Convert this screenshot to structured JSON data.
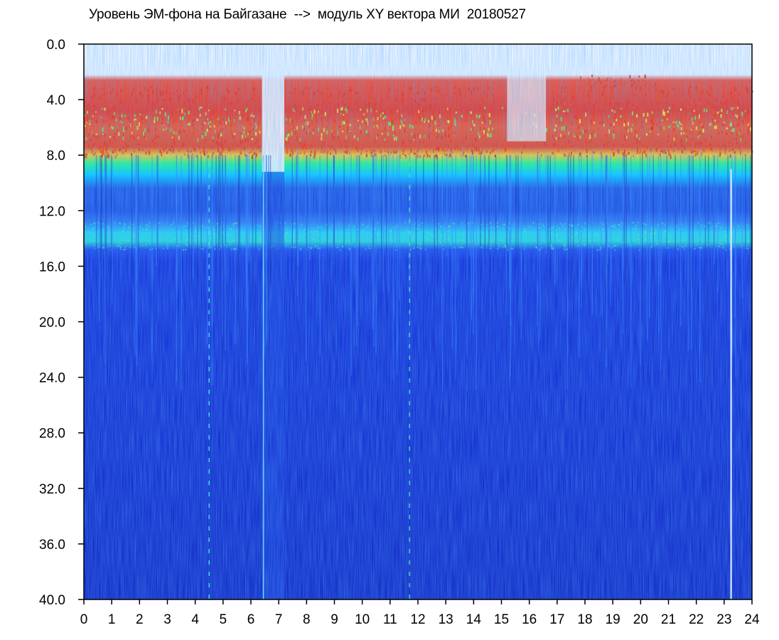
{
  "chart_data": {
    "type": "heatmap",
    "title": "Уровень ЭМ-фона на Байгазане  -->  модуль XY вектора МИ  20180527",
    "xlabel": "",
    "ylabel": "",
    "xlim": [
      0,
      24
    ],
    "ylim": [
      0,
      40
    ],
    "y_axis_direction": "top-to-bottom",
    "x_ticks": [
      "0",
      "1",
      "2",
      "3",
      "4",
      "5",
      "6",
      "7",
      "8",
      "9",
      "10",
      "11",
      "12",
      "13",
      "14",
      "15",
      "16",
      "17",
      "18",
      "19",
      "20",
      "21",
      "22",
      "23",
      "24"
    ],
    "y_ticks": [
      "0.0",
      "4.0",
      "8.0",
      "12.0",
      "16.0",
      "20.0",
      "24.0",
      "28.0",
      "32.0",
      "36.0",
      "40.0"
    ],
    "colorscale": [
      "#0a22c8",
      "#1060ff",
      "#00e0ff",
      "#40ff60",
      "#ffff00",
      "#ff2000"
    ],
    "background": "#ffffff",
    "bands": [
      {
        "name_hint": "intense",
        "y_from": 2.5,
        "y_to": 7.8,
        "level": "red-yellow"
      },
      {
        "name_hint": "edge",
        "y_from": 7.8,
        "y_to": 9.0,
        "level": "green-yellow"
      },
      {
        "name_hint": "mid",
        "y_from": 9.0,
        "y_to": 13.0,
        "level": "blue"
      },
      {
        "name_hint": "secondary",
        "y_from": 13.0,
        "y_to": 15.0,
        "level": "cyan"
      },
      {
        "name_hint": "background",
        "y_from": 15.0,
        "y_to": 40.0,
        "level": "deep-blue"
      }
    ],
    "gaps": [
      {
        "x_from": 6.4,
        "x_to": 7.2,
        "note": "low level"
      },
      {
        "x_from": 15.2,
        "x_to": 16.6,
        "note": "reduced upper band"
      }
    ]
  }
}
